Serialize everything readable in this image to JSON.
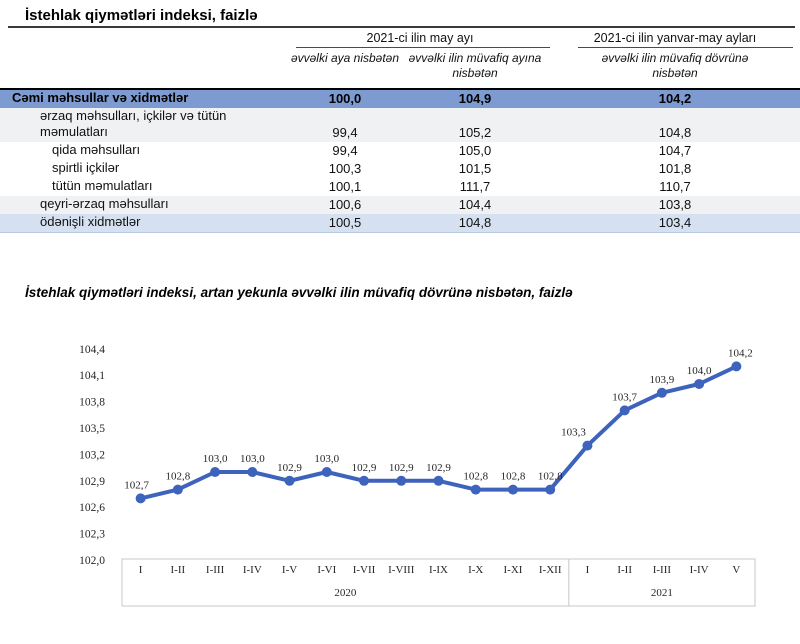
{
  "page": {
    "title": "İstehlak qiymətləri indeksi, faizlə"
  },
  "table": {
    "col_groups": [
      {
        "label": "2021-ci ilin may ayı"
      },
      {
        "label": "2021-ci ilin yanvar-may ayları"
      }
    ],
    "col_headers": [
      "əvvəlki aya nisbətən",
      "əvvəlki ilin müvafiq ayına nisbətən",
      "əvvəlki ilin müvafiq dövrünə nisbətən"
    ],
    "rows": [
      {
        "label": "Cəmi məhsullar və xidmətlər",
        "values": [
          "100,0",
          "104,9",
          "104,2"
        ]
      },
      {
        "label": "ərzaq məhsulları, içkilər və tütün məmulatları",
        "values": [
          "99,4",
          "105,2",
          "104,8"
        ]
      },
      {
        "label": "qida məhsulları",
        "values": [
          "99,4",
          "105,0",
          "104,7"
        ]
      },
      {
        "label": "spirtli içkilər",
        "values": [
          "100,3",
          "101,5",
          "101,8"
        ]
      },
      {
        "label": "tütün məmulatları",
        "values": [
          "100,1",
          "111,7",
          "110,7"
        ]
      },
      {
        "label": "qeyri-ərzaq məhsulları",
        "values": [
          "100,6",
          "104,4",
          "103,8"
        ]
      },
      {
        "label": "ödənişli xidmətlər",
        "values": [
          "100,5",
          "104,8",
          "103,4"
        ]
      }
    ],
    "colors": {
      "total_row_bg": "#7D9BD1",
      "stripe_gray": "#F0F1F2",
      "stripe_blue": "#D5E0F1"
    }
  },
  "chart": {
    "title": "İstehlak qiymətləri indeksi, artan yekunla əvvəlki ilin müvafiq dövrünə nisbətən, faizlə"
  },
  "chart_data": {
    "type": "line",
    "title": "İstehlak qiymətləri indeksi, artan yekunla əvvəlki ilin müvafiq dövrünə nisbətən, faizlə",
    "categories": [
      "I",
      "I-II",
      "I-III",
      "I-IV",
      "I-V",
      "I-VI",
      "I-VII",
      "I-VIII",
      "I-IX",
      "I-X",
      "I-XI",
      "I-XII",
      "I",
      "I-II",
      "I-III",
      "I-IV",
      "V"
    ],
    "groups": [
      {
        "label": "2020",
        "count": 12
      },
      {
        "label": "2021",
        "count": 5
      }
    ],
    "values": [
      102.7,
      102.8,
      103.0,
      103.0,
      102.9,
      103.0,
      102.9,
      102.9,
      102.9,
      102.8,
      102.8,
      102.8,
      103.3,
      103.7,
      103.9,
      104.0,
      104.2
    ],
    "value_labels": [
      "102,7",
      "102,8",
      "103,0",
      "103,0",
      "102,9",
      "103,0",
      "102,9",
      "102,9",
      "102,9",
      "102,8",
      "102,8",
      "102,8",
      "103,3",
      "103,7",
      "103,9",
      "104,0",
      "104,2"
    ],
    "xlabel": "",
    "ylabel": "",
    "ylim": [
      102.0,
      104.4
    ],
    "ytick_step": 0.3,
    "ytick_labels": [
      "102,0",
      "102,3",
      "102,6",
      "102,9",
      "103,2",
      "103,5",
      "103,8",
      "104,1",
      "104,4"
    ],
    "grid": false,
    "legend": false,
    "line_color": "#3E63BC",
    "axis_box_color": "#c8c8c8"
  }
}
